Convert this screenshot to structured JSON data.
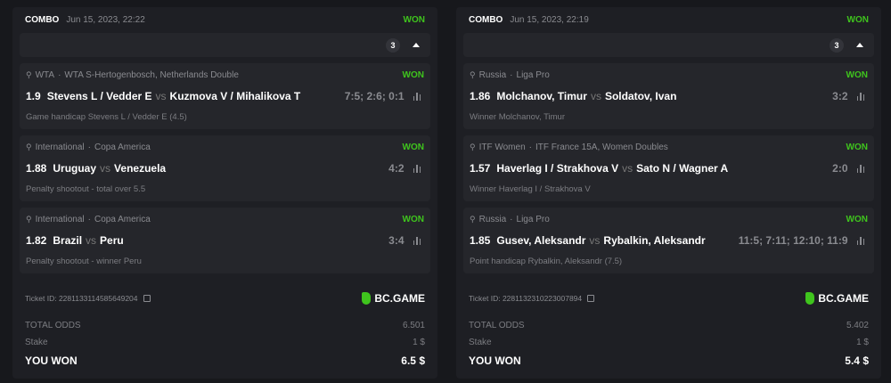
{
  "colors": {
    "won": "#3fc41d",
    "background": "#17181c",
    "card": "#1e1f24",
    "leg": "#25262b"
  },
  "tickets": [
    {
      "type": "COMBO",
      "date": "Jun 15, 2023, 22:22",
      "status": "WON",
      "count": "3",
      "legs": [
        {
          "sport_icon": "tennis-icon",
          "league": "WTA",
          "tournament": "WTA S-Hertogenbosch, Netherlands Double",
          "status": "WON",
          "odds": "1.9",
          "home": "Stevens L / Vedder E",
          "vs": "vs",
          "away": "Kuzmova V / Mihalikova T",
          "score": "7:5; 2:6; 0:1",
          "market": "Game handicap Stevens L / Vedder E (4.5)"
        },
        {
          "sport_icon": "fifa-icon",
          "league": "International",
          "tournament": "Copa America",
          "status": "WON",
          "odds": "1.88",
          "home": "Uruguay",
          "vs": "vs",
          "away": "Venezuela",
          "score": "4:2",
          "market": "Penalty shootout - total over 5.5"
        },
        {
          "sport_icon": "fifa-icon",
          "league": "International",
          "tournament": "Copa America",
          "status": "WON",
          "odds": "1.82",
          "home": "Brazil",
          "vs": "vs",
          "away": "Peru",
          "score": "3:4",
          "market": "Penalty shootout - winner Peru"
        }
      ],
      "ticket_id": "Ticket ID: 2281133114585649204",
      "brand": "BC.GAME",
      "total_odds_label": "TOTAL ODDS",
      "total_odds": "6.501",
      "stake_label": "Stake",
      "stake": "1 $",
      "won_label": "YOU WON",
      "won": "6.5 $"
    },
    {
      "type": "COMBO",
      "date": "Jun 15, 2023, 22:19",
      "status": "WON",
      "count": "3",
      "legs": [
        {
          "sport_icon": "table-tennis-icon",
          "league": "Russia",
          "tournament": "Liga Pro",
          "status": "WON",
          "odds": "1.86",
          "home": "Molchanov, Timur",
          "vs": "vs",
          "away": "Soldatov, Ivan",
          "score": "3:2",
          "market": "Winner Molchanov, Timur"
        },
        {
          "sport_icon": "tennis-icon",
          "league": "ITF Women",
          "tournament": "ITF France 15A, Women Doubles",
          "status": "WON",
          "odds": "1.57",
          "home": "Haverlag I / Strakhova V",
          "vs": "vs",
          "away": "Sato N / Wagner A",
          "score": "2:0",
          "market": "Winner Haverlag I / Strakhova V"
        },
        {
          "sport_icon": "table-tennis-icon",
          "league": "Russia",
          "tournament": "Liga Pro",
          "status": "WON",
          "odds": "1.85",
          "home": "Gusev, Aleksandr",
          "vs": "vs",
          "away": "Rybalkin, Aleksandr",
          "score": "11:5; 7:11; 12:10; 11:9",
          "market": "Point handicap Rybalkin, Aleksandr (7.5)"
        }
      ],
      "ticket_id": "Ticket ID: 2281132310223007894",
      "brand": "BC.GAME",
      "total_odds_label": "TOTAL ODDS",
      "total_odds": "5.402",
      "stake_label": "Stake",
      "stake": "1 $",
      "won_label": "YOU WON",
      "won": "5.4 $"
    }
  ]
}
